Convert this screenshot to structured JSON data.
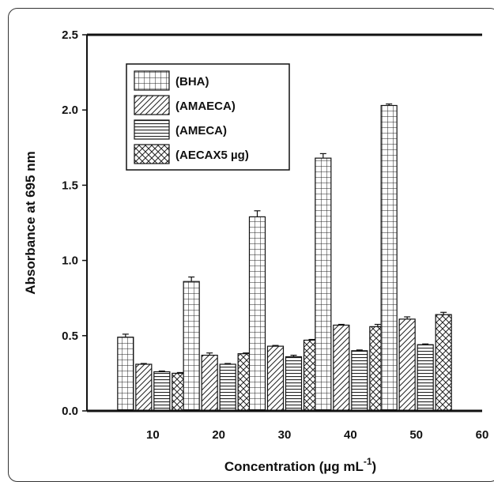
{
  "chart_data": {
    "type": "bar",
    "title": "",
    "xlabel": "Concentration (µg mL⁻¹)",
    "xlabel_main": "Concentration (",
    "xlabel_unit": "µg mL",
    "xlabel_sup": "-1",
    "xlabel_close": ")",
    "ylabel": "Absorbance at 695 nm",
    "ylim": [
      0,
      2.5
    ],
    "yticks": [
      "0.0",
      "0.5",
      "1.0",
      "1.5",
      "2.0",
      "2.5"
    ],
    "xlim": [
      0,
      60
    ],
    "xticks": [
      "10",
      "20",
      "30",
      "40",
      "50",
      "60"
    ],
    "categories": [
      10,
      20,
      30,
      40,
      50
    ],
    "legend_position": "top-left",
    "series": [
      {
        "name": "(BHA)",
        "pattern": "grid",
        "values": [
          0.49,
          0.86,
          1.29,
          1.68,
          2.03
        ],
        "errors": [
          0.02,
          0.03,
          0.04,
          0.03,
          0.01
        ]
      },
      {
        "name": "(AMAECA)",
        "pattern": "diagonal",
        "values": [
          0.31,
          0.37,
          0.43,
          0.57,
          0.61
        ],
        "errors": [
          0.005,
          0.015,
          0.005,
          0.005,
          0.015
        ]
      },
      {
        "name": "(AMECA)",
        "pattern": "horizontal",
        "values": [
          0.26,
          0.31,
          0.36,
          0.4,
          0.44
        ],
        "errors": [
          0.005,
          0.005,
          0.01,
          0.005,
          0.005
        ]
      },
      {
        "name": "(AECAX5 µg)",
        "pattern": "crosshatch",
        "values": [
          0.25,
          0.38,
          0.47,
          0.56,
          0.64
        ],
        "errors": [
          0.005,
          0.005,
          0.005,
          0.015,
          0.015
        ]
      }
    ]
  }
}
